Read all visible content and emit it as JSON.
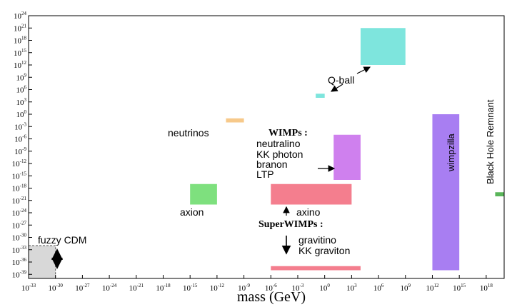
{
  "chart_data": {
    "type": "area",
    "title": "",
    "xlabel": "mass (GeV)",
    "ylabel": "",
    "xscale": "log",
    "yscale": "log",
    "xlim": [
      1e-33,
      1e+20
    ],
    "ylim": [
      1e-40,
      1e+24
    ],
    "grid": false,
    "xticks": [
      "10^-33",
      "10^-30",
      "10^-27",
      "10^-24",
      "10^-21",
      "10^-18",
      "10^-15",
      "10^-12",
      "10^-9",
      "10^-6",
      "10^-3",
      "10^0",
      "10^3",
      "10^6",
      "10^9",
      "10^12",
      "10^15",
      "10^18"
    ],
    "yticks": [
      "10^24",
      "10^21",
      "10^18",
      "10^15",
      "10^12",
      "10^9",
      "10^6",
      "10^3",
      "10^0",
      "10^-3",
      "10^-6",
      "10^-9",
      "10^-12",
      "10^-15",
      "10^-18",
      "10^-21",
      "10^-24",
      "10^-27",
      "10^-30",
      "10^-33",
      "10^-36",
      "10^-39"
    ],
    "regions": [
      {
        "name": "fuzzy CDM",
        "color": "#d8d8d8",
        "x": [
          1e-33,
          1e-30
        ],
        "y": [
          1e-40,
          1e-32
        ],
        "dashed": true
      },
      {
        "name": "axion",
        "color": "#7ee07e",
        "x": [
          1e-15,
          1e-12
        ],
        "y": [
          1e-22,
          1e-17
        ]
      },
      {
        "name": "neutrinos",
        "color": "#f7c98a",
        "x": [
          1e-11,
          1e-09
        ],
        "y": [
          0.01,
          0.1
        ]
      },
      {
        "name": "axino",
        "color": "#f47e8e",
        "x": [
          1e-06,
          1000.0
        ],
        "y": [
          1e-22,
          1e-17
        ]
      },
      {
        "name": "gravitino / KK graviton",
        "color": "#f47e8e",
        "x": [
          1e-06,
          10000.0
        ],
        "y": [
          1e-38,
          1e-37
        ]
      },
      {
        "name": "WIMPs",
        "color": "#cf80ee",
        "x": [
          10.0,
          10000.0
        ],
        "y": [
          1e-16,
          1e-05
        ]
      },
      {
        "name": "Q-ball",
        "color": "#7ee5dd",
        "x": [
          10000.0,
          1000000000.0
        ],
        "y": [
          1000000000000.0,
          1e+21
        ]
      },
      {
        "name": "Q-ball",
        "color": "#7ee5dd",
        "x": [
          0.1,
          1.0
        ],
        "y": [
          10000.0,
          100000.0
        ]
      },
      {
        "name": "wimpzilla",
        "color": "#a87ef2",
        "x": [
          1000000000000.0,
          1000000000000000.0
        ],
        "y": [
          1e-38,
          1.0
        ]
      },
      {
        "name": "Black Hole Remnant",
        "color": "#5ab55a",
        "x": [
          1e+19,
          1e+20
        ],
        "y": [
          1e-20,
          1e-19
        ]
      }
    ],
    "annotations": {
      "fuzzy_cdm": "fuzzy CDM",
      "axion": "axion",
      "neutrinos": "neutrinos",
      "wimps_title": "WIMPs :",
      "wimps_items": [
        "neutralino",
        "KK photon",
        "branon",
        "LTP"
      ],
      "axino": "axino",
      "superwimps_title": "SuperWIMPs :",
      "superwimps_items": [
        "gravitino",
        "KK graviton"
      ],
      "qball": "Q-ball",
      "wimpzilla": "wimpzilla",
      "black_hole": "Black Hole Remnant"
    }
  }
}
